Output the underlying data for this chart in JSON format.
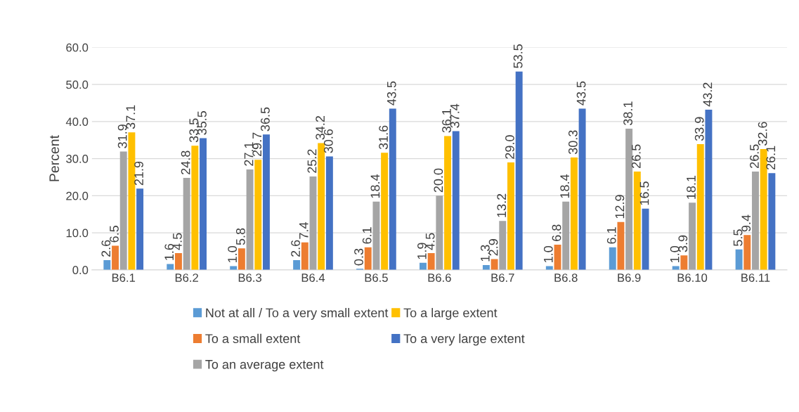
{
  "chart_data": {
    "type": "bar",
    "ylabel": "Percent",
    "categories": [
      "B6.1",
      "B6.2",
      "B6.3",
      "B6.4",
      "B6.5",
      "B6.6",
      "B6.7",
      "B6.8",
      "B6.9",
      "B6.10",
      "B6.11"
    ],
    "ylim": [
      0,
      60
    ],
    "yticks": [
      {
        "value": 0,
        "label": "0.0"
      },
      {
        "value": 10,
        "label": "10.0"
      },
      {
        "value": 20,
        "label": "20.0"
      },
      {
        "value": 30,
        "label": "30.0"
      },
      {
        "value": 40,
        "label": "40.0"
      },
      {
        "value": 50,
        "label": "50.0"
      },
      {
        "value": 60,
        "label": "60.0"
      }
    ],
    "grid": "y",
    "legend": "bottom",
    "series": [
      {
        "name": "Not at all / To a very small extent",
        "color": "#5b9bd5",
        "values": [
          2.6,
          1.6,
          1.0,
          2.6,
          0.3,
          1.9,
          1.3,
          1.0,
          6.1,
          1.0,
          5.5
        ],
        "value_labels": [
          "2.6",
          "1.6",
          "1.0",
          "2.6",
          "0.3",
          "1.9",
          "1.3",
          "1.0",
          "6.1",
          "1.0",
          "5.5"
        ]
      },
      {
        "name": "To a small extent",
        "color": "#ed7d31",
        "values": [
          6.5,
          4.5,
          5.8,
          7.4,
          6.1,
          4.5,
          2.9,
          6.8,
          12.9,
          3.9,
          9.4
        ],
        "value_labels": [
          "6.5",
          "4.5",
          "5.8",
          "7.4",
          "6.1",
          "4.5",
          "2.9",
          "6.8",
          "12.9",
          "3.9",
          "9.4"
        ]
      },
      {
        "name": "To an average extent",
        "color": "#a5a5a5",
        "values": [
          31.9,
          24.8,
          27.1,
          25.2,
          18.4,
          20.0,
          13.2,
          18.4,
          38.1,
          18.1,
          26.5
        ],
        "value_labels": [
          "31.9",
          "24.8",
          "27.1",
          "25.2",
          "18.4",
          "20.0",
          "13.2",
          "18.4",
          "38.1",
          "18.1",
          "26.5"
        ]
      },
      {
        "name": "To a large extent",
        "color": "#ffc000",
        "values": [
          37.1,
          33.5,
          29.7,
          34.2,
          31.6,
          36.1,
          29.0,
          30.3,
          26.5,
          33.9,
          32.6
        ],
        "value_labels": [
          "37.1",
          "33.5",
          "29.7",
          "34.2",
          "31.6",
          "36.1",
          "29.0",
          "30.3",
          "26.5",
          "33.9",
          "32.6"
        ]
      },
      {
        "name": "To a very large extent",
        "color": "#4472c4",
        "values": [
          21.9,
          35.5,
          36.5,
          30.6,
          43.5,
          37.4,
          53.5,
          43.5,
          16.5,
          43.2,
          26.1
        ],
        "value_labels": [
          "21.9",
          "35.5",
          "36.5",
          "30.6",
          "43.5",
          "37.4",
          "53.5",
          "43.5",
          "16.5",
          "43.2",
          "26.1"
        ]
      }
    ]
  }
}
